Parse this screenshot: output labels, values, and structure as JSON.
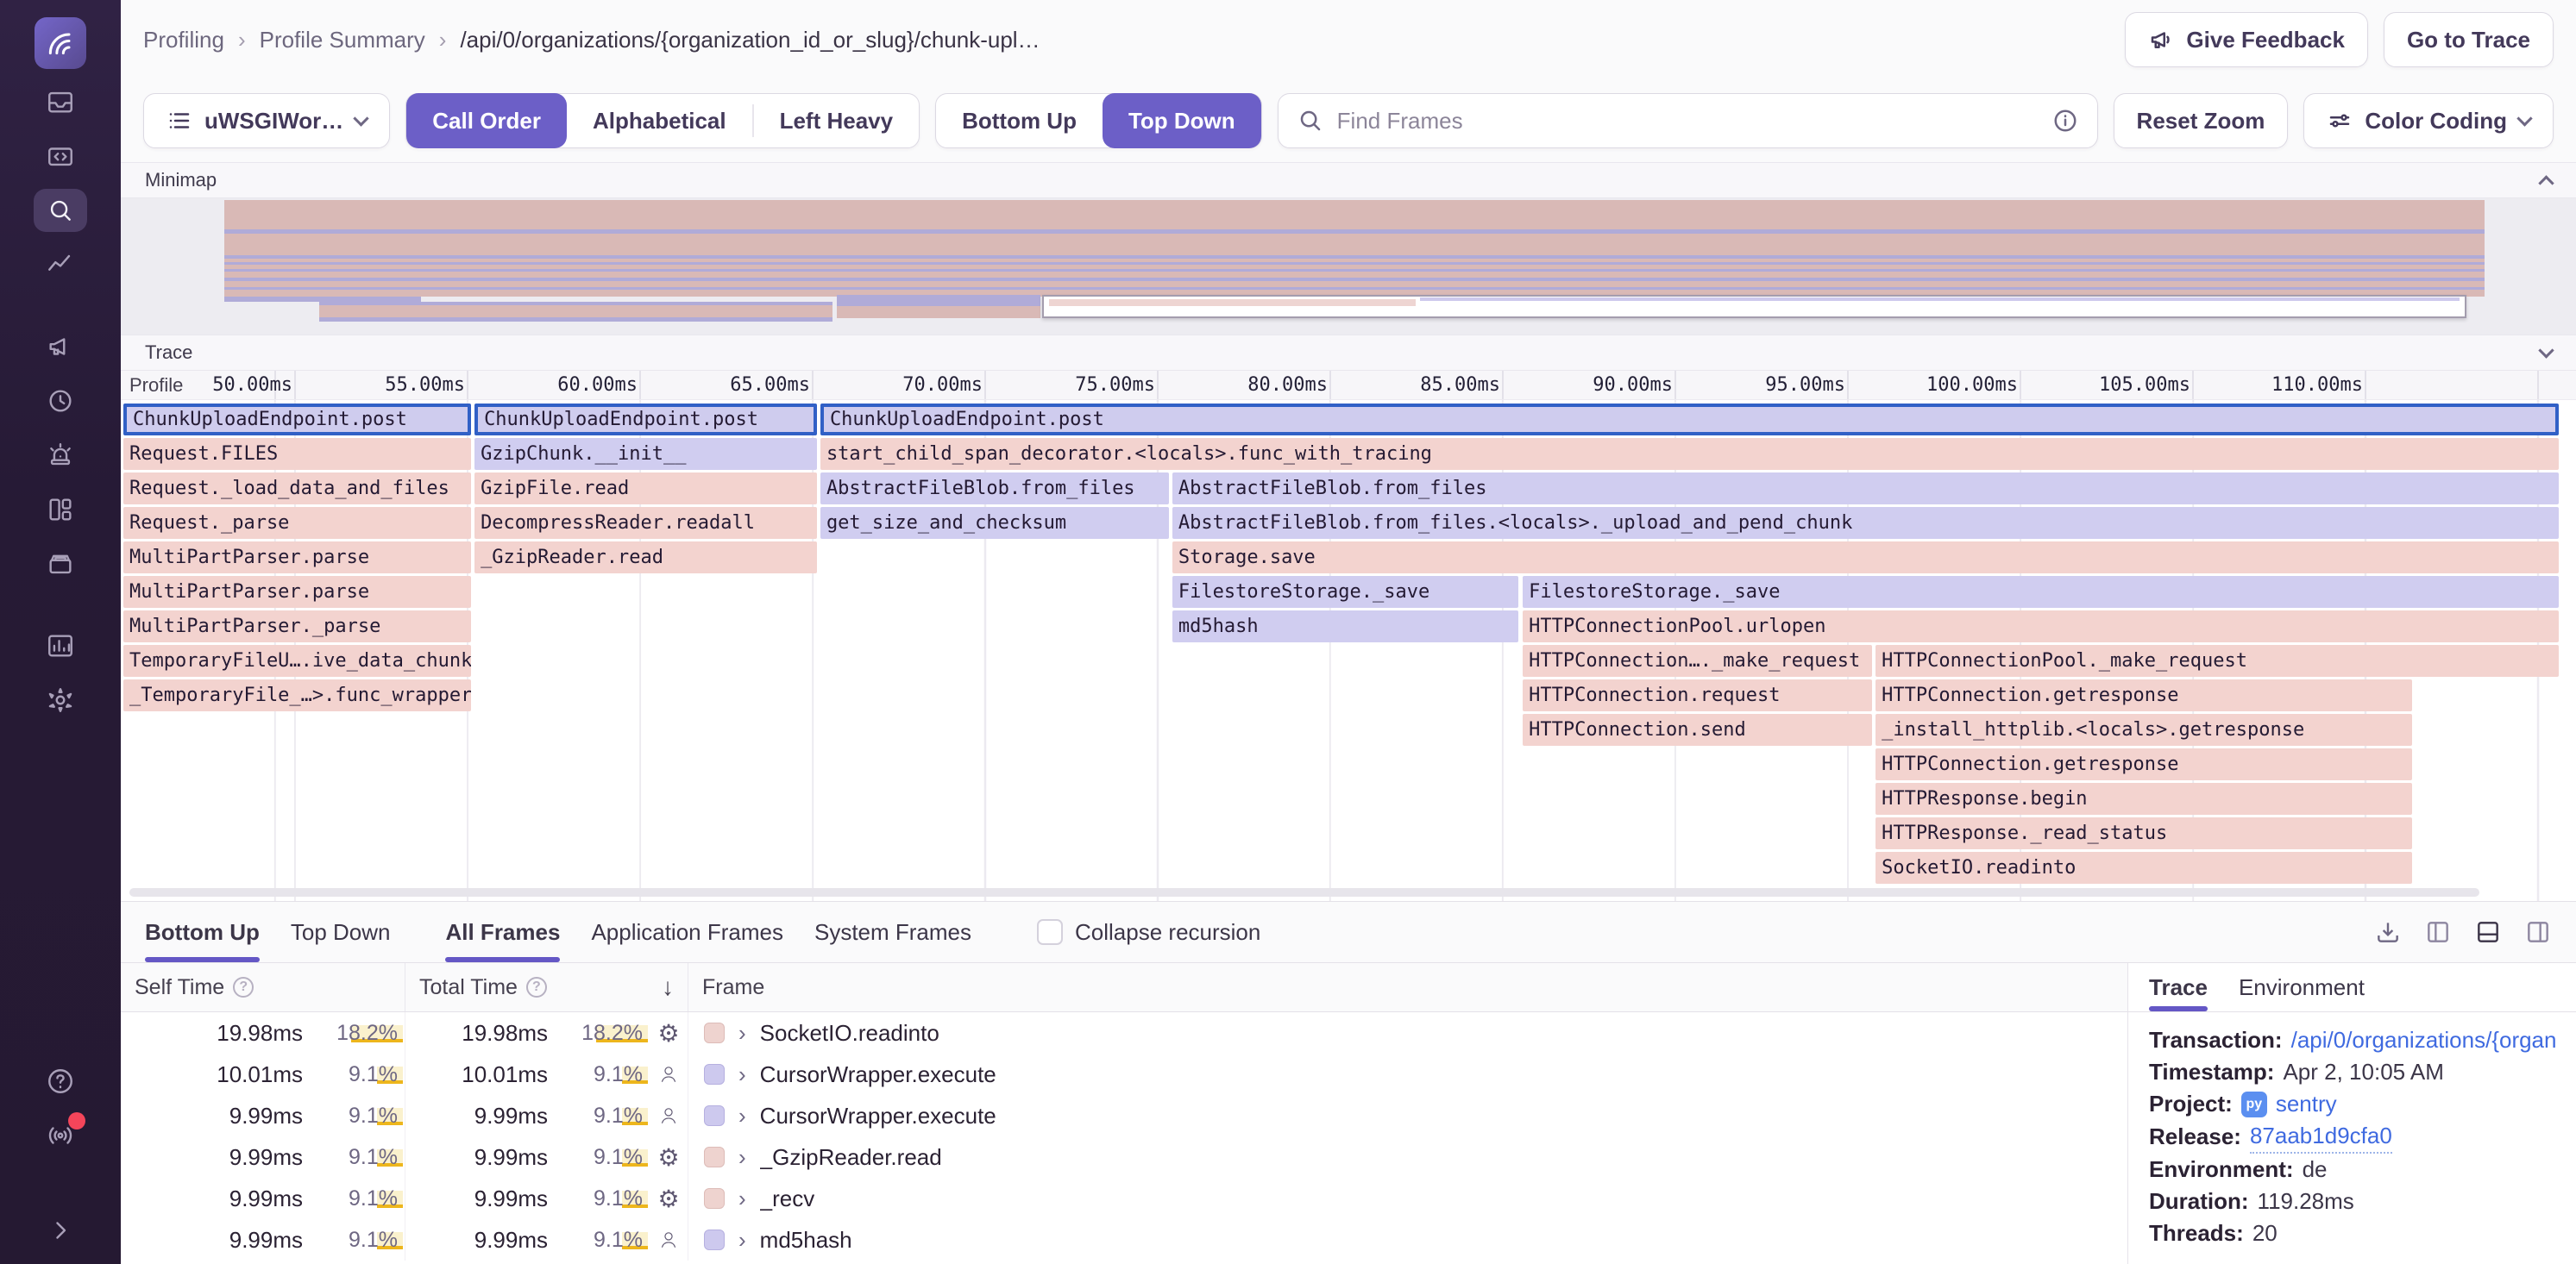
{
  "sidebar": {
    "logo": "sentry-logo",
    "icons": [
      {
        "name": "issues",
        "active": false
      },
      {
        "name": "explore",
        "active": false
      },
      {
        "name": "search",
        "active": true
      },
      {
        "name": "insights",
        "active": false
      },
      {
        "name": "feedback",
        "active": false,
        "gap_before": true
      },
      {
        "name": "replays",
        "active": false
      },
      {
        "name": "alerts",
        "active": false
      },
      {
        "name": "dashboards",
        "active": false
      },
      {
        "name": "releases",
        "active": false
      },
      {
        "name": "stats",
        "active": false,
        "gap_before": true
      },
      {
        "name": "settings",
        "active": false
      }
    ],
    "footer_icons": [
      {
        "name": "help"
      },
      {
        "name": "whats-new",
        "badge": true
      },
      {
        "name": "collapse-sidebar"
      }
    ]
  },
  "header": {
    "breadcrumbs": [
      "Profiling",
      "Profile Summary",
      "/api/0/organizations/{organization_id_or_slug}/chunk-upl…"
    ],
    "give_feedback": "Give Feedback",
    "go_to_trace": "Go to Trace"
  },
  "toolbar": {
    "thread_select": "uWSGIWor…",
    "sort_options": [
      "Call Order",
      "Alphabetical",
      "Left Heavy"
    ],
    "sort_active": "Call Order",
    "direction_options": [
      "Bottom Up",
      "Top Down"
    ],
    "direction_active": "Top Down",
    "search_placeholder": "Find Frames",
    "reset_zoom": "Reset Zoom",
    "color_coding": "Color Coding"
  },
  "minimap": {
    "title": "Minimap",
    "rects": [
      [
        0,
        2,
        100,
        112,
        "p"
      ],
      [
        0,
        36,
        100,
        5,
        "v"
      ],
      [
        0,
        66,
        100,
        4,
        "v"
      ],
      [
        0,
        74,
        100,
        3,
        "v"
      ],
      [
        0,
        82,
        100,
        3,
        "v"
      ],
      [
        0,
        92,
        100,
        4,
        "v"
      ],
      [
        0,
        103,
        100,
        3,
        "v"
      ],
      [
        0,
        114,
        8.7,
        6,
        "v"
      ],
      [
        4.2,
        120,
        22.7,
        4,
        "v"
      ],
      [
        4.2,
        124,
        22.7,
        14,
        "p"
      ],
      [
        4.2,
        138,
        22.7,
        5,
        "v"
      ],
      [
        27.1,
        112,
        9,
        13,
        "v"
      ],
      [
        27.1,
        125,
        9,
        14,
        "p"
      ],
      [
        36.2,
        112,
        63,
        27,
        "box"
      ],
      [
        36.5,
        117,
        16.2,
        8,
        "lp"
      ],
      [
        52.9,
        115,
        46,
        4,
        "lv"
      ]
    ]
  },
  "trace_section": {
    "title": "Trace",
    "profile_label": "Profile",
    "ticks": [
      "50.00ms",
      "55.00ms",
      "60.00ms",
      "65.00ms",
      "70.00ms",
      "75.00ms",
      "80.00ms",
      "85.00ms",
      "90.00ms",
      "95.00ms",
      "100.00ms",
      "105.00ms",
      "110.00ms"
    ]
  },
  "flamegraph": {
    "colors": {
      "pink": "#f3d3cf",
      "purple": "#d0cdf0",
      "selected_border": "#3160c6"
    },
    "frames": [
      [
        0,
        0,
        14.28,
        "s",
        "ChunkUploadEndpoint.post"
      ],
      [
        0,
        14.42,
        14.06,
        "s",
        "ChunkUploadEndpoint.post"
      ],
      [
        0,
        28.62,
        71.38,
        "s",
        "ChunkUploadEndpoint.post"
      ],
      [
        1,
        0,
        14.28,
        "p",
        "Request.FILES"
      ],
      [
        1,
        14.42,
        14.06,
        "v",
        "GzipChunk.__init__"
      ],
      [
        1,
        28.62,
        71.38,
        "p",
        "start_child_span_decorator.<locals>.func_with_tracing"
      ],
      [
        2,
        0,
        14.28,
        "p",
        "Request._load_data_and_files"
      ],
      [
        2,
        14.42,
        14.06,
        "p",
        "GzipFile.read"
      ],
      [
        2,
        28.62,
        14.31,
        "v",
        "AbstractFileBlob.from_files"
      ],
      [
        2,
        43.07,
        56.93,
        "v",
        "AbstractFileBlob.from_files"
      ],
      [
        3,
        0,
        14.28,
        "p",
        "Request._parse"
      ],
      [
        3,
        14.42,
        14.06,
        "p",
        "DecompressReader.readall"
      ],
      [
        3,
        28.62,
        14.31,
        "v",
        "get_size_and_checksum"
      ],
      [
        3,
        43.07,
        56.93,
        "v",
        "AbstractFileBlob.from_files.<locals>._upload_and_pend_chunk"
      ],
      [
        4,
        0,
        14.28,
        "p",
        "MultiPartParser.parse"
      ],
      [
        4,
        14.42,
        14.06,
        "p",
        "_GzipReader.read"
      ],
      [
        4,
        43.07,
        56.93,
        "p",
        "Storage.save"
      ],
      [
        5,
        0,
        14.28,
        "p",
        "MultiPartParser.parse"
      ],
      [
        5,
        43.07,
        14.21,
        "v",
        "FilestoreStorage._save"
      ],
      [
        5,
        57.46,
        42.54,
        "v",
        "FilestoreStorage._save"
      ],
      [
        6,
        0,
        14.28,
        "p",
        "MultiPartParser._parse"
      ],
      [
        6,
        43.07,
        14.21,
        "v",
        "md5hash"
      ],
      [
        6,
        57.46,
        42.54,
        "p",
        "HTTPConnectionPool.urlopen"
      ],
      [
        7,
        0,
        14.28,
        "p",
        "TemporaryFileU….ive_data_chunk"
      ],
      [
        7,
        57.46,
        14.35,
        "p",
        "HTTPConnection…._make_request"
      ],
      [
        7,
        71.95,
        28.06,
        "p",
        "HTTPConnectionPool._make_request"
      ],
      [
        8,
        0,
        14.28,
        "p",
        "_TemporaryFile_…>.func_wrapper"
      ],
      [
        8,
        57.46,
        14.35,
        "p",
        "HTTPConnection.request"
      ],
      [
        8,
        71.95,
        22.03,
        "p",
        "HTTPConnection.getresponse"
      ],
      [
        9,
        57.46,
        14.35,
        "p",
        "HTTPConnection.send"
      ],
      [
        9,
        71.95,
        22.03,
        "p",
        "_install_httplib.<locals>.getresponse"
      ],
      [
        10,
        71.95,
        22.03,
        "p",
        "HTTPConnection.getresponse"
      ],
      [
        11,
        71.95,
        22.03,
        "p",
        "HTTPResponse.begin"
      ],
      [
        12,
        71.95,
        22.03,
        "p",
        "HTTPResponse._read_status"
      ],
      [
        13,
        71.95,
        22.03,
        "p",
        "SocketIO.readinto"
      ]
    ]
  },
  "bottom_panel": {
    "tabs": [
      {
        "label": "Bottom Up",
        "active": true,
        "group": 1
      },
      {
        "label": "Top Down",
        "active": false,
        "group": 1
      },
      {
        "label": "All Frames",
        "active": true,
        "group": 2
      },
      {
        "label": "Application Frames",
        "active": false,
        "group": 2
      },
      {
        "label": "System Frames",
        "active": false,
        "group": 2
      }
    ],
    "collapse_recursion_label": "Collapse recursion",
    "columns": {
      "self": "Self Time",
      "total": "Total Time",
      "frame": "Frame"
    },
    "sort_arrow": "↓",
    "rows": [
      {
        "self": "19.98ms",
        "self_pct": "18.2%",
        "total": "19.98ms",
        "total_pct": "18.2%",
        "pct_value": 18.2,
        "icon": "gear",
        "color": "pink",
        "frame": "SocketIO.readinto"
      },
      {
        "self": "10.01ms",
        "self_pct": "9.1%",
        "total": "10.01ms",
        "total_pct": "9.1%",
        "pct_value": 9.1,
        "icon": "user",
        "color": "purple",
        "frame": "CursorWrapper.execute"
      },
      {
        "self": "9.99ms",
        "self_pct": "9.1%",
        "total": "9.99ms",
        "total_pct": "9.1%",
        "pct_value": 9.1,
        "icon": "user",
        "color": "purple",
        "frame": "CursorWrapper.execute"
      },
      {
        "self": "9.99ms",
        "self_pct": "9.1%",
        "total": "9.99ms",
        "total_pct": "9.1%",
        "pct_value": 9.1,
        "icon": "gear",
        "color": "pink",
        "frame": "_GzipReader.read"
      },
      {
        "self": "9.99ms",
        "self_pct": "9.1%",
        "total": "9.99ms",
        "total_pct": "9.1%",
        "pct_value": 9.1,
        "icon": "gear",
        "color": "pink",
        "frame": "_recv"
      },
      {
        "self": "9.99ms",
        "self_pct": "9.1%",
        "total": "9.99ms",
        "total_pct": "9.1%",
        "pct_value": 9.1,
        "icon": "user",
        "color": "purple",
        "frame": "md5hash"
      }
    ]
  },
  "details": {
    "tabs": [
      {
        "label": "Trace",
        "active": true
      },
      {
        "label": "Environment",
        "active": false
      }
    ],
    "fields": [
      {
        "label": "Transaction:",
        "value": "/api/0/organizations/{organ…",
        "link": true
      },
      {
        "label": "Timestamp:",
        "value": "Apr 2, 10:05 AM"
      },
      {
        "label": "Project:",
        "value": "sentry",
        "link": true,
        "icon": "python"
      },
      {
        "label": "Release:",
        "value": "87aab1d9cfa0",
        "link": true,
        "dotted": true
      },
      {
        "label": "Environment:",
        "value": "de"
      },
      {
        "label": "Duration:",
        "value": "119.28ms"
      },
      {
        "label": "Threads:",
        "value": "20"
      }
    ]
  }
}
